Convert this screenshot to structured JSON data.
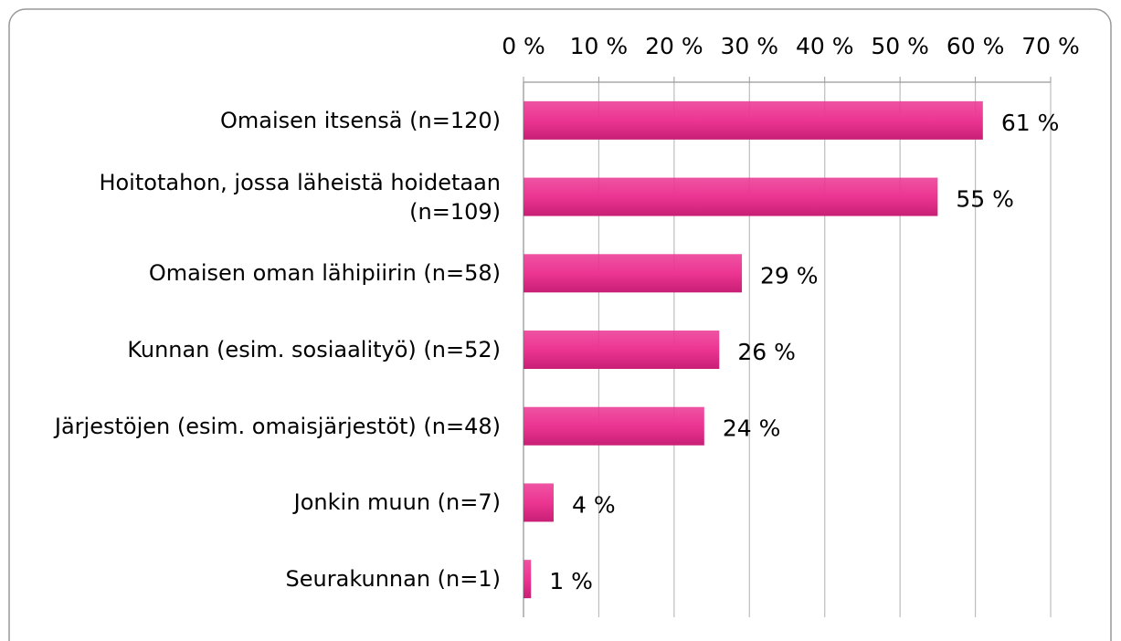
{
  "chart_data": {
    "type": "bar",
    "orientation": "horizontal",
    "categories": [
      "Omaisen itsensä (n=120)",
      "Hoitotahon, jossa läheistä hoidetaan (n=109)",
      "Omaisen oman lähipiirin (n=58)",
      "Kunnan (esim. sosiaalityö) (n=52)",
      "Järjestöjen (esim. omaisjärjestöt) (n=48)",
      "Jonkin muun (n=7)",
      "Seurakunnan (n=1)"
    ],
    "values": [
      61,
      55,
      29,
      26,
      24,
      4,
      1
    ],
    "value_labels": [
      "61 %",
      "55 %",
      "29 %",
      "26 %",
      "24 %",
      "4 %",
      "1 %"
    ],
    "color": "#ec3592",
    "xlim": [
      0,
      70
    ],
    "xticks": [
      {
        "value": 0,
        "label": "0 %"
      },
      {
        "value": 10,
        "label": "10 %"
      },
      {
        "value": 20,
        "label": "20 %"
      },
      {
        "value": 30,
        "label": "30 %"
      },
      {
        "value": 40,
        "label": "40 %"
      },
      {
        "value": 50,
        "label": "50 %"
      },
      {
        "value": 60,
        "label": "60 %"
      },
      {
        "value": 70,
        "label": "70 %"
      }
    ],
    "grid": true
  }
}
